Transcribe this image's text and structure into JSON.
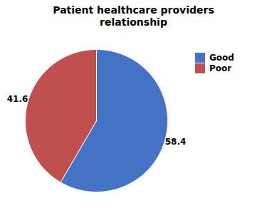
{
  "chart_data": {
    "type": "pie",
    "title": "Patient healthcare providers\nrelationship",
    "categories": [
      "Good",
      "Poor"
    ],
    "values": [
      58.4,
      41.6
    ],
    "colors": [
      "#4472C4",
      "#C0504D"
    ],
    "data_labels": true,
    "legend": "upper right"
  }
}
